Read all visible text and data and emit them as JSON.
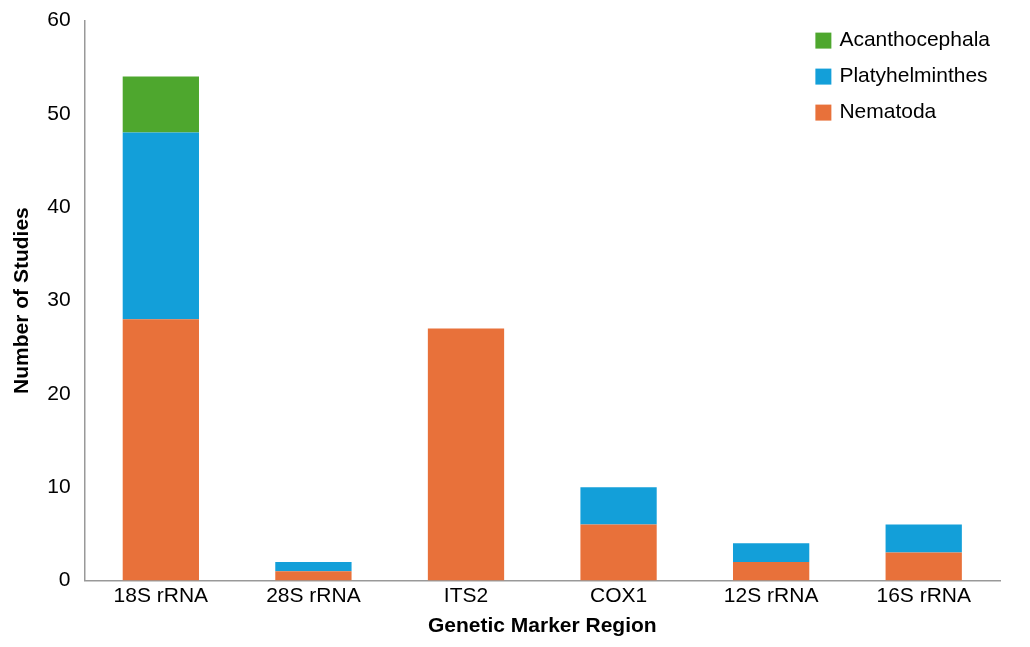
{
  "chart_data": {
    "type": "bar",
    "stacked": true,
    "xlabel": "Genetic Marker Region",
    "ylabel": "Number of Studies",
    "categories": [
      "18S rRNA",
      "28S rRNA",
      "ITS2",
      "COX1",
      "12S rRNA",
      "16S rRNA"
    ],
    "series": [
      {
        "name": "Nematoda",
        "color": "#e8713a",
        "values": [
          28,
          1,
          27,
          6,
          2,
          3
        ]
      },
      {
        "name": "Platyhelminthes",
        "color": "#139fd9",
        "values": [
          20,
          1,
          null,
          4,
          2,
          3
        ]
      },
      {
        "name": "Acanthocephala",
        "color": "#4ea72e",
        "values": [
          6,
          null,
          null,
          null,
          null,
          null
        ]
      }
    ],
    "ylim": [
      0,
      60
    ],
    "yticks": [
      0,
      10,
      20,
      30,
      40,
      50,
      60
    ],
    "grid": false,
    "legend": "top right"
  }
}
